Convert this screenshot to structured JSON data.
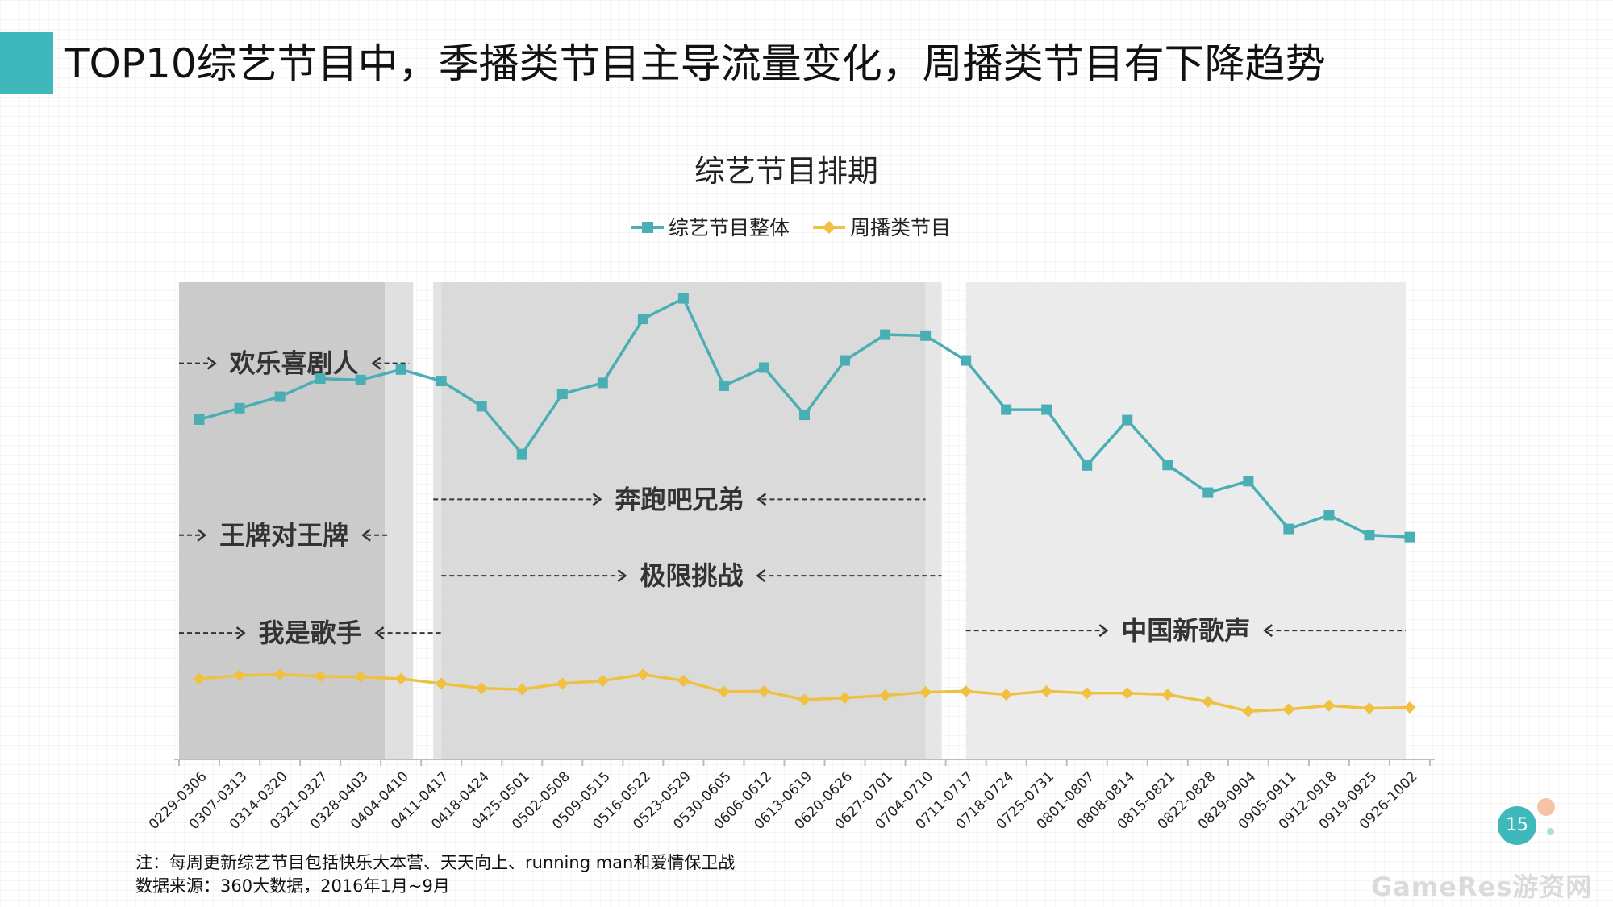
{
  "slide": {
    "title": "TOP10综艺节目中，季播类节目主导流量变化，周播类节目有下降趋势",
    "note_line1": "注：每周更新综艺节目包括快乐大本营、天天向上、running man和爱情保卫战",
    "note_line2": "数据来源：360大数据，2016年1月~9月",
    "page_number": "15",
    "watermark": "GameRes游资网",
    "colors": {
      "accent": "#3fb8bb",
      "series_overall": "#4aafb4",
      "series_weekly": "#f0c040"
    }
  },
  "chart_data": {
    "type": "line",
    "title": "综艺节目排期",
    "legend_position": "top",
    "y_axis_visible": false,
    "grid": false,
    "ylim": [
      0,
      100
    ],
    "categories": [
      "0229-0306",
      "0307-0313",
      "0314-0320",
      "0321-0327",
      "0328-0403",
      "0404-0410",
      "0411-0417",
      "0418-0424",
      "0425-0501",
      "0502-0508",
      "0509-0515",
      "0516-0522",
      "0523-0529",
      "0530-0605",
      "0606-0612",
      "0613-0619",
      "0620-0626",
      "0627-0701",
      "0704-0710",
      "0711-0717",
      "0718-0724",
      "0725-0731",
      "0801-0807",
      "0808-0814",
      "0815-0821",
      "0822-0828",
      "0829-0904",
      "0905-0911",
      "0912-0918",
      "0919-0925",
      "0926-1002"
    ],
    "series": [
      {
        "name": "综艺节目整体",
        "marker": "square",
        "color": "#4aafb4",
        "values": [
          71.2,
          73.6,
          76.0,
          79.8,
          79.5,
          81.7,
          79.3,
          74.0,
          64.0,
          76.6,
          78.9,
          92.3,
          96.6,
          78.3,
          82.1,
          72.2,
          83.6,
          89.0,
          88.8,
          83.6,
          73.3,
          73.3,
          61.6,
          71.1,
          61.7,
          55.9,
          58.3,
          48.3,
          51.2,
          47.0,
          46.6
        ]
      },
      {
        "name": "周播类节目",
        "marker": "diamond",
        "color": "#f0c040",
        "values": [
          16.9,
          17.6,
          17.8,
          17.4,
          17.3,
          16.9,
          15.9,
          14.9,
          14.7,
          15.9,
          16.5,
          17.8,
          16.5,
          14.2,
          14.3,
          12.5,
          12.9,
          13.4,
          14.1,
          14.3,
          13.6,
          14.3,
          13.9,
          13.9,
          13.6,
          12.1,
          10.1,
          10.5,
          11.3,
          10.7,
          10.9
        ]
      }
    ],
    "annotations": [
      {
        "label": "欢乐喜剧人",
        "start": 0,
        "end": 5.7,
        "y": 83
      },
      {
        "label": "王牌对王牌",
        "start": 0,
        "end": 5.2,
        "y": 47
      },
      {
        "label": "我是歌手",
        "start": 0,
        "end": 6.5,
        "y": 26.5
      },
      {
        "label": "奔跑吧兄弟",
        "start": 6.3,
        "end": 18.5,
        "y": 54.5
      },
      {
        "label": "极限挑战",
        "start": 6.5,
        "end": 18.9,
        "y": 38.5
      },
      {
        "label": "中国新歌声",
        "start": 19.5,
        "end": 30.4,
        "y": 27
      }
    ],
    "shaded_regions": [
      {
        "start": 0,
        "end": 5.1,
        "shade": "#cbcbcb"
      },
      {
        "start": 5.1,
        "end": 5.8,
        "shade": "#e0e0e0"
      },
      {
        "start": 6.3,
        "end": 6.5,
        "shade": "#e3e3e3"
      },
      {
        "start": 6.5,
        "end": 18.5,
        "shade": "#dadada"
      },
      {
        "start": 18.5,
        "end": 18.9,
        "shade": "#e6e6e6"
      },
      {
        "start": 19.5,
        "end": 30.4,
        "shade": "#ebebeb"
      }
    ]
  }
}
